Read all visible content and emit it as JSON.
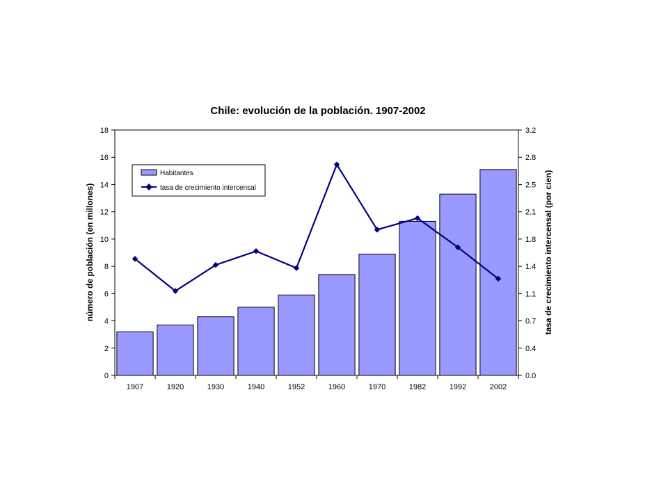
{
  "chart_data": {
    "type": "bar",
    "title": "Chile: evolución de la población. 1907-2002",
    "ylabel_left": "número de población (en millones)",
    "ylabel_right": "tasa de crecimiento intercensal (por cien)",
    "categories": [
      "1907",
      "1920",
      "1930",
      "1940",
      "1952",
      "1960",
      "1970",
      "1982",
      "1992",
      "2002"
    ],
    "y_left": {
      "min": 0,
      "max": 18,
      "ticks": [
        "0",
        "2",
        "4",
        "6",
        "8",
        "10",
        "12",
        "14",
        "16",
        "18"
      ]
    },
    "y_right": {
      "min": 0.0,
      "max": 3.2,
      "ticks": [
        "0.0",
        "0.4",
        "0.7",
        "1.1",
        "1.4",
        "1.8",
        "2.1",
        "2.5",
        "2.8",
        "3.2"
      ]
    },
    "series": [
      {
        "name": "Habitantes",
        "type": "bar",
        "axis": "left",
        "color": "#9999ff",
        "values": [
          3.2,
          3.7,
          4.3,
          5.0,
          5.9,
          7.4,
          8.9,
          11.3,
          13.3,
          15.1
        ]
      },
      {
        "name": "tasa de crecimiento intercensal",
        "type": "line",
        "axis": "right",
        "color": "#000080",
        "values": [
          1.52,
          1.1,
          1.44,
          1.62,
          1.4,
          2.75,
          1.9,
          2.05,
          1.67,
          1.26
        ]
      }
    ],
    "legend_position": "top-left",
    "grid": false
  }
}
